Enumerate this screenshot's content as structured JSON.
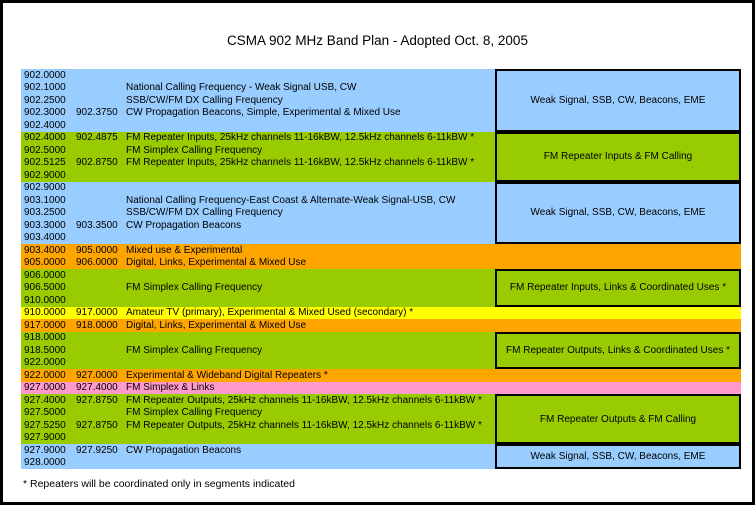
{
  "title": "CSMA 902 MHz Band Plan - Adopted Oct. 8, 2005",
  "footnote": "* Repeaters will be coordinated only in segments indicated",
  "colors": {
    "blue": "#99CCFF",
    "green": "#99CC00",
    "orange": "#FFA500",
    "yellow": "#FFFF00",
    "pink": "#FF99CC",
    "border": "#000000"
  },
  "bandplan": {
    "rows": [
      {
        "band": "blue",
        "freq_start": "902.0000",
        "freq_end": "",
        "desc": ""
      },
      {
        "band": "blue",
        "freq_start": "902.1000",
        "freq_end": "",
        "desc": "National Calling Frequency - Weak Signal USB, CW"
      },
      {
        "band": "blue",
        "freq_start": "902.2500",
        "freq_end": "",
        "desc": "SSB/CW/FM DX Calling Frequency"
      },
      {
        "band": "blue",
        "freq_start": "902.3000",
        "freq_end": "902.3750",
        "desc": "CW Propagation Beacons, Simple, Experimental & Mixed Use"
      },
      {
        "band": "blue",
        "freq_start": "902.4000",
        "freq_end": "",
        "desc": ""
      },
      {
        "band": "green",
        "freq_start": "902.4000",
        "freq_end": "902.4875",
        "desc": "FM Repeater Inputs, 25kHz channels 11-16kBW, 12.5kHz channels 6-11kBW *"
      },
      {
        "band": "green",
        "freq_start": "902.5000",
        "freq_end": "",
        "desc": "FM Simplex Calling Frequency"
      },
      {
        "band": "green",
        "freq_start": "902.5125",
        "freq_end": "902.8750",
        "desc": "FM Repeater Inputs, 25kHz channels 11-16kBW, 12.5kHz channels 6-11kBW *"
      },
      {
        "band": "green",
        "freq_start": "902.9000",
        "freq_end": "",
        "desc": ""
      },
      {
        "band": "blue",
        "freq_start": "902.9000",
        "freq_end": "",
        "desc": ""
      },
      {
        "band": "blue",
        "freq_start": "903.1000",
        "freq_end": "",
        "desc": "National Calling Frequency-East Coast & Alternate-Weak Signal-USB, CW"
      },
      {
        "band": "blue",
        "freq_start": "903.2500",
        "freq_end": "",
        "desc": "SSB/CW/FM DX Calling Frequency"
      },
      {
        "band": "blue",
        "freq_start": "903.3000",
        "freq_end": "903.3500",
        "desc": "CW Propagation Beacons"
      },
      {
        "band": "blue",
        "freq_start": "903.4000",
        "freq_end": "",
        "desc": ""
      },
      {
        "band": "orange",
        "freq_start": "903.4000",
        "freq_end": "905.0000",
        "desc": "Mixed use & Experimental"
      },
      {
        "band": "orange",
        "freq_start": "905.0000",
        "freq_end": "906.0000",
        "desc": "Digital, Links, Experimental & Mixed Use"
      },
      {
        "band": "green",
        "freq_start": "906.0000",
        "freq_end": "",
        "desc": ""
      },
      {
        "band": "green",
        "freq_start": "906.5000",
        "freq_end": "",
        "desc": "FM Simplex Calling Frequency"
      },
      {
        "band": "green",
        "freq_start": "910.0000",
        "freq_end": "",
        "desc": ""
      },
      {
        "band": "yellow",
        "freq_start": "910.0000",
        "freq_end": "917.0000",
        "desc": "Amateur TV (primary), Experimental & Mixed Used (secondary) *"
      },
      {
        "band": "orange",
        "freq_start": "917.0000",
        "freq_end": "918.0000",
        "desc": "Digital, Links, Experimental & Mixed Use"
      },
      {
        "band": "green",
        "freq_start": "918.0000",
        "freq_end": "",
        "desc": ""
      },
      {
        "band": "green",
        "freq_start": "918.5000",
        "freq_end": "",
        "desc": "FM Simplex Calling Frequency"
      },
      {
        "band": "green",
        "freq_start": "922.0000",
        "freq_end": "",
        "desc": ""
      },
      {
        "band": "orange",
        "freq_start": "922.0000",
        "freq_end": "927.0000",
        "desc": "Experimental & Wideband Digital Repeaters *"
      },
      {
        "band": "pink",
        "freq_start": "927.0000",
        "freq_end": "927.4000",
        "desc": "FM Simplex & Links"
      },
      {
        "band": "green",
        "freq_start": "927.4000",
        "freq_end": "927.8750",
        "desc": "FM Repeater Outputs, 25kHz channels 11-16kBW, 12.5kHz channels 6-11kBW *"
      },
      {
        "band": "green",
        "freq_start": "927.5000",
        "freq_end": "",
        "desc": "FM Simplex Calling Frequency"
      },
      {
        "band": "green",
        "freq_start": "927.5250",
        "freq_end": "927.8750",
        "desc": "FM Repeater Outputs, 25kHz channels 11-16kBW, 12.5kHz channels 6-11kBW *"
      },
      {
        "band": "green",
        "freq_start": "927.9000",
        "freq_end": "",
        "desc": ""
      },
      {
        "band": "blue",
        "freq_start": "927.9000",
        "freq_end": "927.9250",
        "desc": "CW Propagation Beacons"
      },
      {
        "band": "blue",
        "freq_start": "928.0000",
        "freq_end": "",
        "desc": ""
      }
    ],
    "right_boxes": [
      {
        "label": "Weak Signal, SSB, CW, Beacons, EME",
        "band": "blue",
        "row_start": 0,
        "row_span": 5
      },
      {
        "label": "FM Repeater Inputs & FM Calling",
        "band": "green",
        "row_start": 5,
        "row_span": 4
      },
      {
        "label": "Weak Signal, SSB, CW, Beacons, EME",
        "band": "blue",
        "row_start": 9,
        "row_span": 5
      },
      {
        "label": "FM Repeater Inputs, Links & Coordinated Uses *",
        "band": "green",
        "row_start": 16,
        "row_span": 3
      },
      {
        "label": "FM Repeater Outputs, Links & Coordinated Uses *",
        "band": "green",
        "row_start": 21,
        "row_span": 3
      },
      {
        "label": "FM Repeater Outputs & FM Calling",
        "band": "green",
        "row_start": 26,
        "row_span": 4
      },
      {
        "label": "Weak Signal, SSB, CW, Beacons, EME",
        "band": "blue",
        "row_start": 30,
        "row_span": 2
      }
    ]
  }
}
